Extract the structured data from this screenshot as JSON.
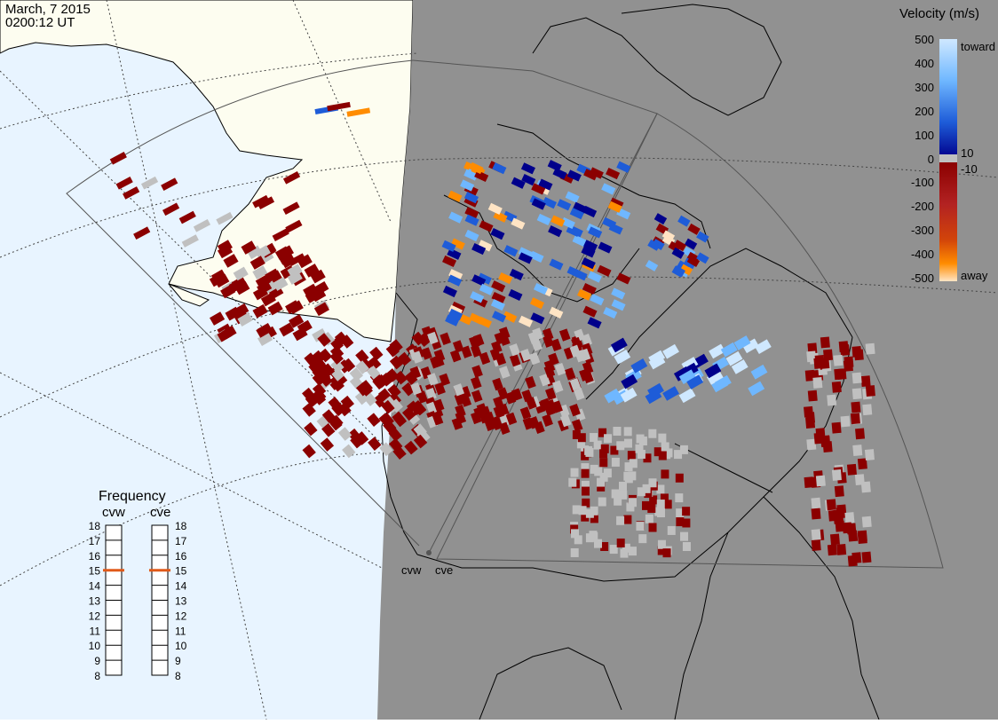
{
  "header": {
    "date": "March, 7 2015",
    "time": "0200:12 UT"
  },
  "legend": {
    "title": "Velocity (m/s)",
    "ticks": [
      "500",
      "400",
      "300",
      "200",
      "100",
      "10",
      "0",
      "-10",
      "-100",
      "-200",
      "-300",
      "-400",
      "-500"
    ],
    "toward_label": "toward",
    "away_label": "away",
    "colors": [
      "#ffe4c4",
      "#ff8c00",
      "#d2440a",
      "#8b0000",
      "#c0c0c0",
      "#00008b",
      "#1e5cd8",
      "#6fb7ff",
      "#cfe8ff"
    ]
  },
  "frequency": {
    "title": "Frequency",
    "radars": [
      "cvw",
      "cve"
    ],
    "scale": [
      "18",
      "17",
      "16",
      "15",
      "14",
      "13",
      "12",
      "11",
      "10",
      "9",
      "8"
    ],
    "marked_value_mhz": 15,
    "marker_color": "#e05a1a"
  },
  "map": {
    "radar_labels": [
      "cvw",
      "cve"
    ],
    "colors": {
      "ocean": "#e8f4ff",
      "land": "#fdfdf0",
      "night": "#919191",
      "coast": "#000000",
      "fov": "#555555",
      "grid": "#444444"
    }
  }
}
